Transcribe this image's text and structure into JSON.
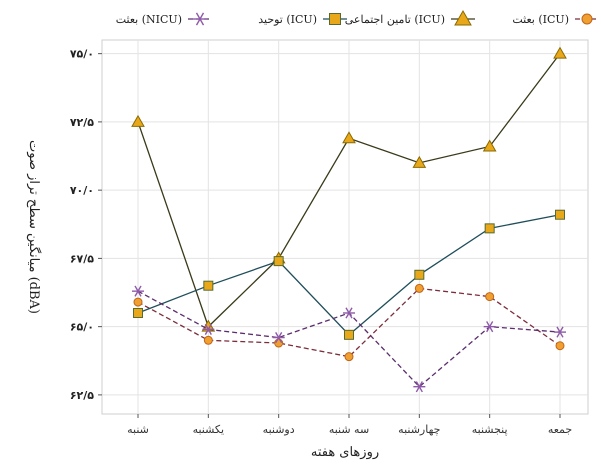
{
  "chart_data": {
    "type": "line",
    "xlabel": "روزهای هفته",
    "ylabel": "میانگین سطح تراز صوت (dBA)",
    "categories": [
      "شنبه",
      "یکشنبه",
      "دوشنبه",
      "سه شنبه",
      "چهارشنبه",
      "پنجشنبه",
      "جمعه"
    ],
    "ylim": [
      61.8,
      75.5
    ],
    "yticks": [
      62.5,
      65.0,
      67.5,
      70.0,
      72.5,
      75.0
    ],
    "ytick_labels": [
      "۶۲/۵",
      "۶۵/۰",
      "۶۷/۵",
      "۷۰/۰",
      "۷۲/۵",
      "۷۵/۰"
    ],
    "grid": true,
    "legend_position": "top",
    "series": [
      {
        "name": "بعثت (ICU)",
        "marker": "circle",
        "line_style": "dashed",
        "line_color": "#7b2d3b",
        "fill_color": "#f0a030",
        "edge_color": "#c0651a",
        "values": [
          65.9,
          64.5,
          64.4,
          63.9,
          66.4,
          66.1,
          64.3
        ]
      },
      {
        "name": "تامین اجتماعی (ICU)",
        "marker": "triangle",
        "line_style": "solid",
        "line_color": "#3a3a1a",
        "fill_color": "#e8a81a",
        "edge_color": "#8a6a00",
        "values": [
          72.5,
          65.0,
          67.5,
          71.9,
          71.0,
          71.6,
          75.0
        ]
      },
      {
        "name": "توحید (ICU)",
        "marker": "square",
        "line_style": "solid",
        "line_color": "#1f4e5a",
        "fill_color": "#e8a81a",
        "edge_color": "#556b2f",
        "values": [
          65.5,
          66.5,
          67.4,
          64.7,
          66.9,
          68.6,
          69.1
        ]
      },
      {
        "name": "بعثت (NICU)",
        "marker": "star",
        "line_style": "dashed",
        "line_color": "#5b2d6e",
        "fill_color": "#b98fd0",
        "edge_color": "#8e5aa8",
        "values": [
          66.3,
          64.9,
          64.6,
          65.5,
          62.8,
          65.0,
          64.8
        ]
      }
    ]
  }
}
